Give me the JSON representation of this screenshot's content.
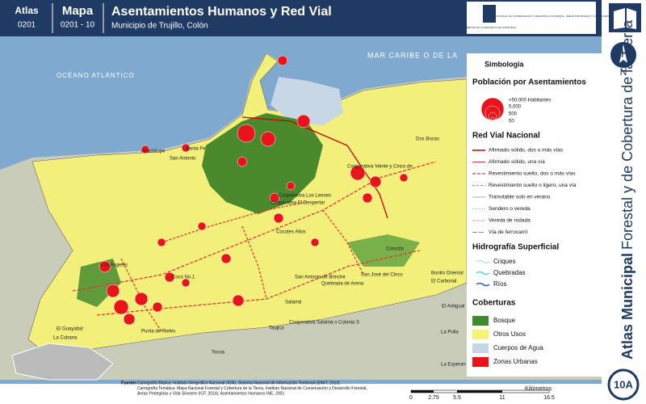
{
  "header": {
    "atlas_label": "Atlas",
    "atlas_code": "0201",
    "map_label": "Mapa",
    "map_code": "0201 - 10",
    "title": "Asentamientos Humanos y Red Vial",
    "subtitle": "Municipio de Trujillo, Colón"
  },
  "logos": {
    "left": "GOBIERNO DE LA REPÚBLICA DE HONDURAS",
    "right": "INSTITUTO NACIONAL DE CONSERVACIÓN Y DESARROLLO FORESTAL, ÁREAS PROTEGIDAS Y VIDA SILVESTRE"
  },
  "side": {
    "north": "N",
    "series_bold": "Atlas Municipal",
    "series_rest": "Forestal y de Cobertura de la Tierra",
    "page": "10A"
  },
  "map": {
    "seas": [
      "MAR CARIBE O DE LA",
      "OCÉANO ATLÁNTICO"
    ],
    "places": [
      "Guadalupe",
      "Santa Fe",
      "San Antonio",
      "Dos Bocas",
      "Cooperativa Veinte y Cinco de",
      "Cooperativa Los Leones",
      "Cooperativa El Despertar",
      "Cocotes Altos",
      "Corocito",
      "Los Ángeles",
      "Coco No.1",
      "San Antonio de Brinche",
      "San José del Cinco",
      "Quebrada de Arena",
      "Bonito Oriental",
      "El Carbonal",
      "Salamá",
      "Cooperativa Salamá o Colonia S",
      "Taujica",
      "El Antigual",
      "La Polla",
      "El Guayabal",
      "La Cubana",
      "Tocoa",
      "La Esperan",
      "Punta de Rieles"
    ]
  },
  "legend": {
    "title": "Simbología",
    "population": {
      "title": "Población por Asentamientos",
      "sizes": [
        "+50,000 Habitantes",
        "5,000",
        "500",
        "50"
      ]
    },
    "roads": {
      "title": "Red Vial Nacional",
      "items": [
        "Afirmado sólido, dos o más vías",
        "Afirmado sólido, una vía",
        "Revestimiento suelto, dos o más vías",
        "Revestimiento suelto o ligero, una vía",
        "Transitable solo en verano",
        "Sendero o vereda",
        "Vereda de rodada",
        "Vía de ferrocarril"
      ]
    },
    "hydro": {
      "title": "Hidrografía Superficial",
      "items": [
        "Criques",
        "Quebradas",
        "Ríos"
      ]
    },
    "cover": {
      "title": "Coberturas",
      "items": [
        "Bosque",
        "Otros Usos",
        "Cuerpos de Agua",
        "Zonas Urbanas"
      ]
    }
  },
  "scale": {
    "labels": [
      "0",
      "2.75",
      "5.5",
      "11",
      "16.5"
    ],
    "unit": "Kilómetros"
  },
  "source": {
    "label": "Fuente:",
    "lines": [
      "Cartografía Básica: Instituto Geográfico Nacional (IGN), Sistema Nacional de Información Territorial (SINIT, 2013)",
      "Cartografía Temática: Mapa Nacional Forestal y Cobertura de la Tierra, Instituto Nacional de Conservación y Desarrollo Forestal,",
      "Áreas Protegidas y Vida Silvestre (ICF, 2014); Asentamientos Humanos INE, 2001"
    ]
  }
}
